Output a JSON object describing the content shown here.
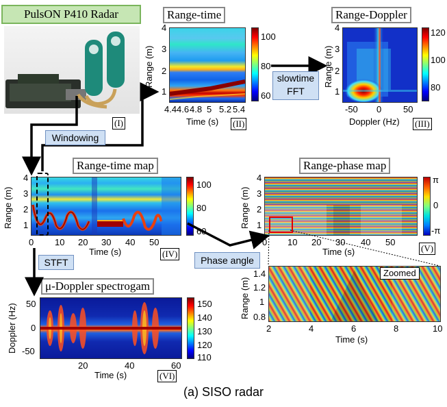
{
  "caption": "(a) SISO radar",
  "device": {
    "title": "PulsON P410 Radar",
    "tag": "(I)"
  },
  "range_time": {
    "title": "Range-time",
    "tag": "(II)",
    "ylabel": "Range (m)",
    "xlabel": "Time (s)",
    "yticks": [
      "4",
      "3",
      "2",
      "1"
    ],
    "xticks": [
      "4.4",
      "4.6",
      "4.8",
      "5",
      "5.2",
      "5.4"
    ],
    "cbar": [
      "100",
      "80",
      "60"
    ]
  },
  "range_doppler": {
    "title": "Range-Doppler",
    "tag": "(III)",
    "ylabel": "Range (m)",
    "xlabel": "Doppler (Hz)",
    "yticks": [
      "4",
      "3",
      "2",
      "1"
    ],
    "xticks": [
      "-50",
      "0",
      "50"
    ],
    "cbar": [
      "120",
      "100",
      "80"
    ]
  },
  "range_time_map": {
    "title": "Range-time map",
    "tag": "(IV)",
    "ylabel": "Range (m)",
    "xlabel": "Time (s)",
    "yticks": [
      "4",
      "3",
      "2",
      "1"
    ],
    "xticks": [
      "0",
      "10",
      "20",
      "30",
      "40",
      "50"
    ],
    "cbar": [
      "100",
      "80",
      "60"
    ]
  },
  "range_phase_map": {
    "title": "Range-phase map",
    "tag": "(V)",
    "ylabel": "Range (m)",
    "xlabel": "Time (s)",
    "yticks": [
      "4",
      "3",
      "2",
      "1"
    ],
    "xticks": [
      "0",
      "10",
      "20",
      "30",
      "40",
      "50"
    ],
    "cbar": [
      "π",
      "0",
      "-π"
    ]
  },
  "zoomed": {
    "label": "Zoomed",
    "ylabel": "Range (m)",
    "xlabel": "Time (s)",
    "yticks": [
      "1.4",
      "1.2",
      "1",
      "0.8"
    ],
    "xticks": [
      "2",
      "4",
      "6",
      "8",
      "10"
    ]
  },
  "spectrogram": {
    "title": "μ-Doppler spectrogam",
    "tag": "(VI)",
    "ylabel": "Doppler (Hz)",
    "xlabel": "Time (s)",
    "yticks": [
      "50",
      "0",
      "-50"
    ],
    "xticks": [
      "20",
      "40",
      "60"
    ],
    "cbar": [
      "150",
      "140",
      "130",
      "120",
      "110"
    ]
  },
  "processing": {
    "windowing": "Windowing",
    "slowtime_fft_1": "slowtime",
    "slowtime_fft_2": "FFT",
    "stft": "STFT",
    "phase_angle": "Phase angle"
  }
}
